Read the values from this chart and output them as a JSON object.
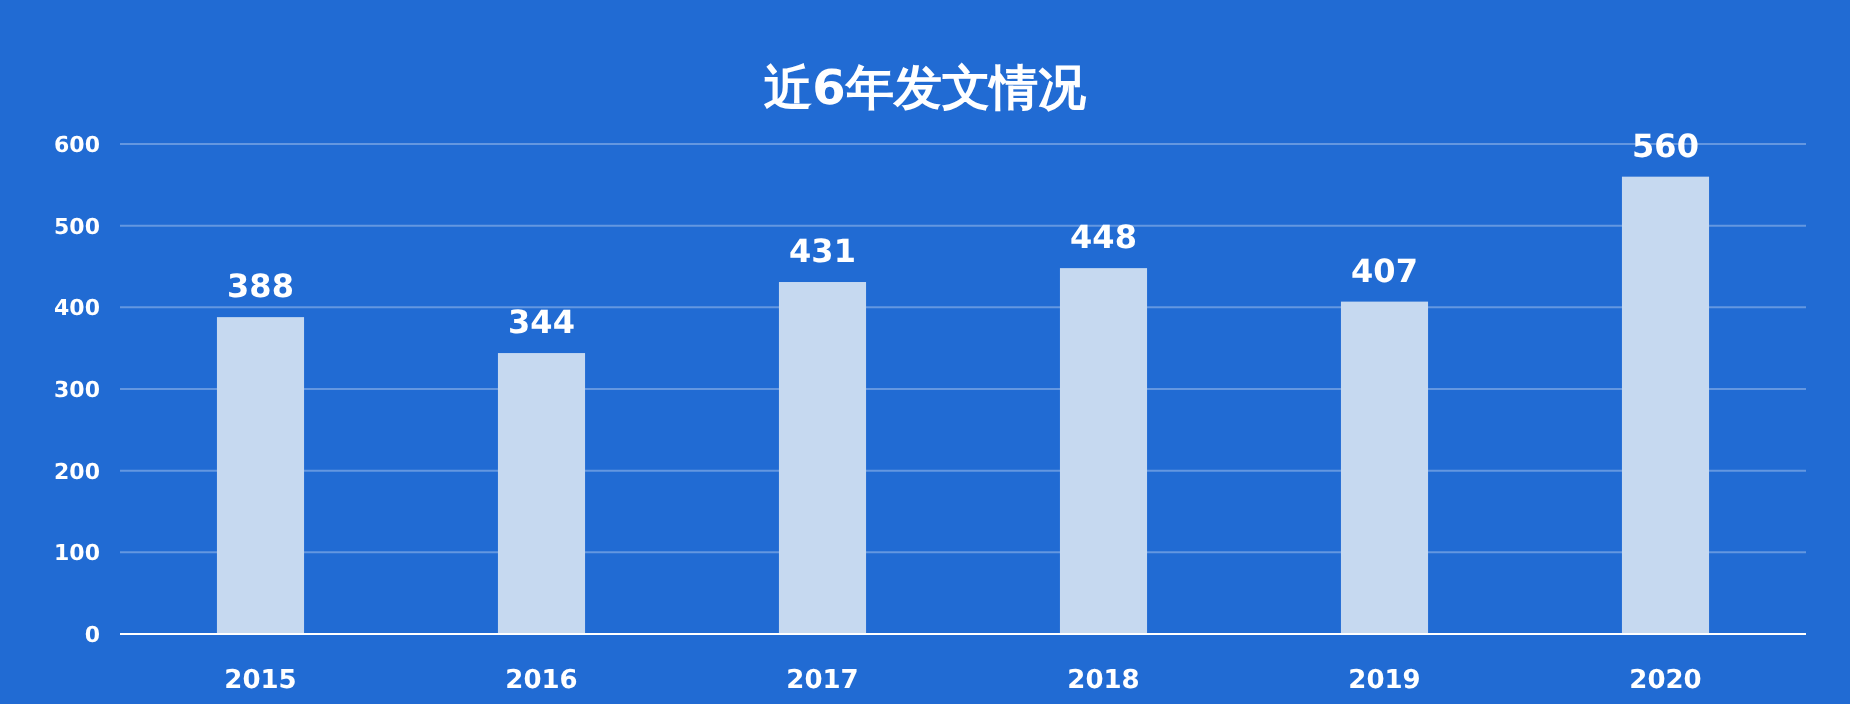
{
  "chart_data": {
    "type": "bar",
    "title": "近6年发文情况",
    "categories": [
      "2015",
      "2016",
      "2017",
      "2018",
      "2019",
      "2020"
    ],
    "values": [
      388,
      344,
      431,
      448,
      407,
      560
    ],
    "color": "#c6d9f0",
    "ylim": [
      0,
      600
    ],
    "yticks": [
      0,
      100,
      200,
      300,
      400,
      500,
      600
    ],
    "grid": true,
    "data_labels": true
  }
}
